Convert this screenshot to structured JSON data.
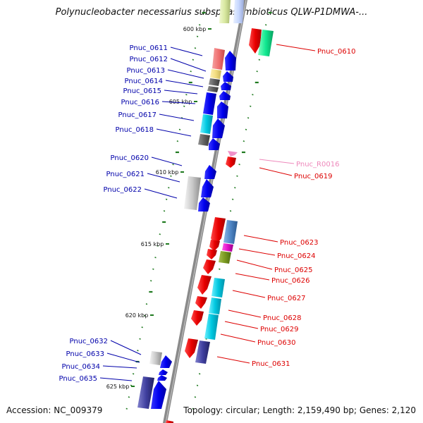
{
  "title": "Polynucleobacter necessarius subsp. asymbioticus QLW-P1DMWA-...",
  "footer": {
    "accession_label": "Accession:",
    "accession": "NC_009379",
    "topology_label": "Topology:",
    "topology": "circular;",
    "length_label": "Length:",
    "length": "2,159,490 bp;",
    "genes_label": "Genes:",
    "genes": "2,120"
  },
  "colors": {
    "minus_label": "#0000aa",
    "plus_label": "#dd0000",
    "rna_label": "#ee88bb",
    "backbone": "#8a8a8a",
    "tick": "#1f7a1f"
  },
  "kbp_labels": [
    {
      "text": "600 kbp",
      "kbp": 600
    },
    {
      "text": "605 kbp",
      "kbp": 605
    },
    {
      "text": "610 kbp",
      "kbp": 610
    },
    {
      "text": "615 kbp",
      "kbp": 615
    },
    {
      "text": "620 kbp",
      "kbp": 620
    },
    {
      "text": "625 kbp",
      "kbp": 625
    }
  ],
  "genes_left": [
    {
      "label": "Pnuc_0611",
      "color": "#0000aa"
    },
    {
      "label": "Pnuc_0612",
      "color": "#0000aa"
    },
    {
      "label": "Pnuc_0613",
      "color": "#0000aa"
    },
    {
      "label": "Pnuc_0614",
      "color": "#0000aa"
    },
    {
      "label": "Pnuc_0615",
      "color": "#0000aa"
    },
    {
      "label": "Pnuc_0616",
      "color": "#0000aa"
    },
    {
      "label": "Pnuc_0617",
      "color": "#0000aa"
    },
    {
      "label": "Pnuc_0618",
      "color": "#0000aa"
    },
    {
      "label": "Pnuc_0620",
      "color": "#0000aa"
    },
    {
      "label": "Pnuc_0621",
      "color": "#0000aa"
    },
    {
      "label": "Pnuc_0622",
      "color": "#0000aa"
    },
    {
      "label": "Pnuc_0632",
      "color": "#0000aa"
    },
    {
      "label": "Pnuc_0633",
      "color": "#0000aa"
    },
    {
      "label": "Pnuc_0634",
      "color": "#0000aa"
    },
    {
      "label": "Pnuc_0635",
      "color": "#0000aa"
    }
  ],
  "genes_right": [
    {
      "label": "Pnuc_0610",
      "color": "#dd0000"
    },
    {
      "label": "Pnuc_R0016",
      "color": "#ee88bb"
    },
    {
      "label": "Pnuc_0619",
      "color": "#dd0000"
    },
    {
      "label": "Pnuc_0623",
      "color": "#dd0000"
    },
    {
      "label": "Pnuc_0624",
      "color": "#dd0000"
    },
    {
      "label": "Pnuc_0625",
      "color": "#dd0000"
    },
    {
      "label": "Pnuc_0626",
      "color": "#dd0000"
    },
    {
      "label": "Pnuc_0627",
      "color": "#dd0000"
    },
    {
      "label": "Pnuc_0628",
      "color": "#dd0000"
    },
    {
      "label": "Pnuc_0629",
      "color": "#dd0000"
    },
    {
      "label": "Pnuc_0630",
      "color": "#dd0000"
    },
    {
      "label": "Pnuc_0631",
      "color": "#dd0000"
    }
  ]
}
